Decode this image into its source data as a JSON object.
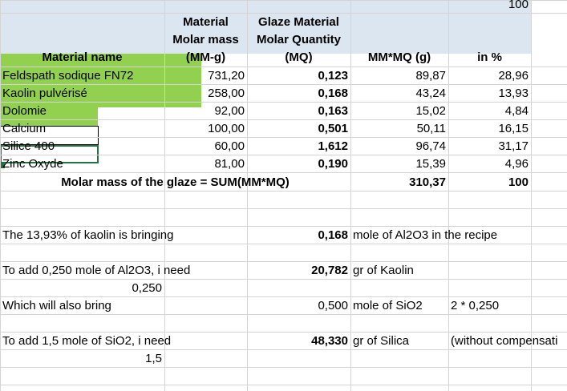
{
  "top_value": "100",
  "header": [
    [
      "Material name"
    ],
    [
      "Material",
      "Molar mass",
      "(MM-g)"
    ],
    [
      "Glaze Material",
      "Molar Quantity",
      "(MQ)"
    ],
    [
      "MM*MQ (g)"
    ],
    [
      "in %"
    ]
  ],
  "rows": [
    [
      "Feldspath sodique FN72",
      "731,20",
      "0,123",
      "89,87",
      "28,96"
    ],
    [
      "Kaolin pulvérisé",
      "258,00",
      "0,168",
      "43,24",
      "13,93"
    ],
    [
      "Dolomie",
      "92,00",
      "0,163",
      "15,02",
      "4,84"
    ],
    [
      "Calcium",
      "100,00",
      "0,501",
      "50,11",
      "16,15"
    ],
    [
      "Silice 400",
      "60,00",
      "1,612",
      "96,74",
      "31,17"
    ],
    [
      "Zinc Oxyde",
      "81,00",
      "0,190",
      "15,39",
      "4,96"
    ]
  ],
  "total": {
    "label": "Molar mass of the glaze = SUM(MM*MQ)",
    "value": "310,37",
    "percent": "100"
  },
  "notes": {
    "kaolin": {
      "text": "The 13,93% of kaolin is bringing",
      "value": "0,168",
      "unit": "mole of Al2O3 in the recipe"
    },
    "alumina": {
      "text": "To add 0,250 mole of Al2O3, i need",
      "value": "20,782",
      "unit": "gr of Kaolin",
      "input": "0,250"
    },
    "silica_bring": {
      "text": "Which will also bring",
      "value": "0,500",
      "unit": "mole of SiO2",
      "formula": "2 * 0,250"
    },
    "silica": {
      "text": "To add 1,5 mole of SiO2, i need",
      "value": "48,330",
      "unit": "gr of Silica",
      "comment": "(without compensati",
      "input": "1,5"
    }
  }
}
